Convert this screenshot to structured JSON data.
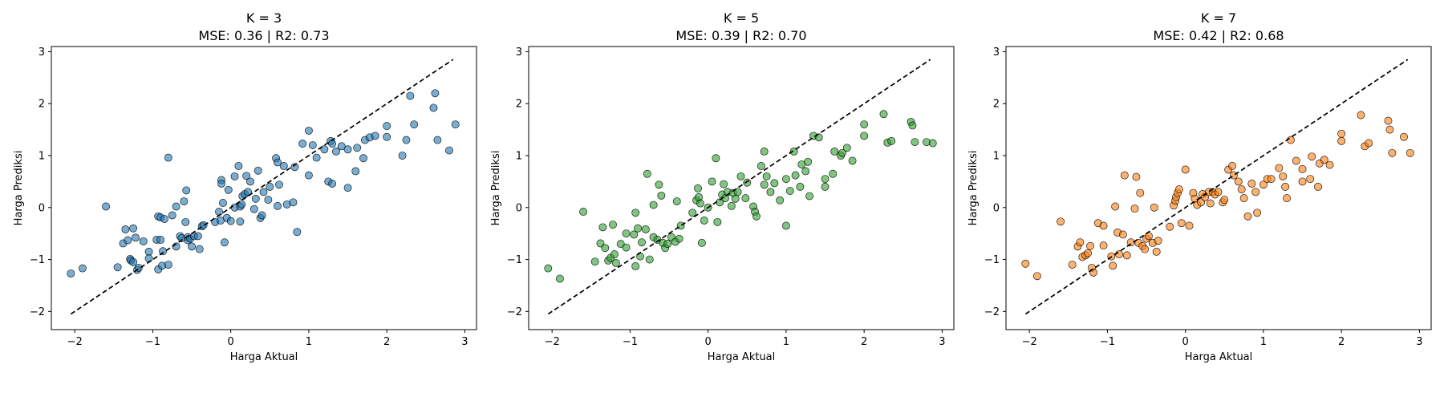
{
  "chart_data": [
    {
      "type": "scatter",
      "title": "K = 3",
      "subtitle": "MSE: 0.36 | R2: 0.73",
      "xlabel": "Harga Aktual",
      "ylabel": "Harga Prediksi",
      "xlim": [
        -2.3,
        3.15
      ],
      "ylim": [
        -2.35,
        3.1
      ],
      "xticks": [
        -2,
        -1,
        0,
        1,
        2,
        3
      ],
      "yticks": [
        -2,
        -1,
        0,
        1,
        2,
        3
      ],
      "xtick_labels": [
        "−2",
        "−1",
        "0",
        "1",
        "2",
        "3"
      ],
      "ytick_labels": [
        "−2",
        "−1",
        "0",
        "1",
        "2",
        "3"
      ],
      "grid": false,
      "marker_color": "#1f77b4",
      "reference_line": {
        "x": [
          -2.05,
          2.85
        ],
        "y": [
          -2.05,
          2.85
        ],
        "color": "#000000",
        "style": "dashed"
      },
      "points": [
        [
          -2.05,
          -1.27
        ],
        [
          -1.9,
          -1.17
        ],
        [
          -1.6,
          0.02
        ],
        [
          -1.45,
          -1.15
        ],
        [
          -1.38,
          -0.69
        ],
        [
          -1.35,
          -0.42
        ],
        [
          -1.32,
          -0.63
        ],
        [
          -1.29,
          -0.99
        ],
        [
          -1.28,
          -1.02
        ],
        [
          -1.25,
          -0.4
        ],
        [
          -1.25,
          -1.05
        ],
        [
          -1.22,
          -0.58
        ],
        [
          -1.2,
          -1.2
        ],
        [
          -1.18,
          -1.16
        ],
        [
          -1.12,
          -0.65
        ],
        [
          -1.05,
          -0.85
        ],
        [
          -1.05,
          -0.98
        ],
        [
          -0.95,
          -0.62
        ],
        [
          -0.93,
          -1.19
        ],
        [
          -0.93,
          -0.17
        ],
        [
          -0.9,
          -0.62
        ],
        [
          -0.9,
          -0.19
        ],
        [
          -0.88,
          -1.12
        ],
        [
          -0.87,
          -0.84
        ],
        [
          -0.85,
          -0.22
        ],
        [
          -0.8,
          -1.1
        ],
        [
          -0.8,
          0.96
        ],
        [
          -0.75,
          -0.15
        ],
        [
          -0.7,
          -0.75
        ],
        [
          -0.7,
          0.02
        ],
        [
          -0.65,
          -0.55
        ],
        [
          -0.63,
          -0.59
        ],
        [
          -0.6,
          0.12
        ],
        [
          -0.58,
          -0.28
        ],
        [
          -0.57,
          0.33
        ],
        [
          -0.55,
          -0.57
        ],
        [
          -0.55,
          -0.63
        ],
        [
          -0.52,
          -0.6
        ],
        [
          -0.5,
          -0.75
        ],
        [
          -0.47,
          -0.55
        ],
        [
          -0.42,
          -0.55
        ],
        [
          -0.4,
          -0.8
        ],
        [
          -0.37,
          -0.36
        ],
        [
          -0.35,
          -0.34
        ],
        [
          -0.2,
          -0.28
        ],
        [
          -0.15,
          -0.08
        ],
        [
          -0.13,
          -0.25
        ],
        [
          -0.12,
          0.53
        ],
        [
          -0.12,
          0.46
        ],
        [
          -0.1,
          0.09
        ],
        [
          -0.08,
          -0.67
        ],
        [
          -0.05,
          -0.2
        ],
        [
          -0.03,
          0.34
        ],
        [
          0.0,
          -0.26
        ],
        [
          0.05,
          0.0
        ],
        [
          0.05,
          0.6
        ],
        [
          0.1,
          0.8
        ],
        [
          0.12,
          -0.27
        ],
        [
          0.12,
          0.02
        ],
        [
          0.14,
          0.06
        ],
        [
          0.15,
          0.22
        ],
        [
          0.18,
          0.26
        ],
        [
          0.2,
          0.61
        ],
        [
          0.22,
          0.3
        ],
        [
          0.25,
          0.5
        ],
        [
          0.3,
          -0.03
        ],
        [
          0.32,
          0.17
        ],
        [
          0.35,
          0.71
        ],
        [
          0.38,
          -0.2
        ],
        [
          0.4,
          -0.15
        ],
        [
          0.42,
          0.3
        ],
        [
          0.48,
          0.15
        ],
        [
          0.5,
          0.4
        ],
        [
          0.58,
          0.95
        ],
        [
          0.6,
          0.87
        ],
        [
          0.6,
          0.03
        ],
        [
          0.62,
          0.44
        ],
        [
          0.68,
          0.8
        ],
        [
          0.72,
          0.06
        ],
        [
          0.8,
          0.1
        ],
        [
          0.82,
          0.78
        ],
        [
          0.85,
          -0.47
        ],
        [
          0.92,
          1.23
        ],
        [
          1.0,
          1.48
        ],
        [
          1.0,
          0.62
        ],
        [
          1.05,
          1.2
        ],
        [
          1.1,
          0.96
        ],
        [
          1.2,
          1.12
        ],
        [
          1.25,
          0.5
        ],
        [
          1.28,
          1.28
        ],
        [
          1.3,
          0.46
        ],
        [
          1.3,
          1.23
        ],
        [
          1.35,
          1.08
        ],
        [
          1.42,
          1.18
        ],
        [
          1.5,
          0.38
        ],
        [
          1.5,
          1.12
        ],
        [
          1.6,
          0.7
        ],
        [
          1.62,
          1.15
        ],
        [
          1.7,
          0.95
        ],
        [
          1.72,
          1.3
        ],
        [
          1.78,
          1.35
        ],
        [
          1.85,
          1.38
        ],
        [
          2.0,
          1.57
        ],
        [
          2.0,
          1.36
        ],
        [
          2.2,
          1.0
        ],
        [
          2.25,
          1.3
        ],
        [
          2.3,
          2.15
        ],
        [
          2.35,
          1.6
        ],
        [
          2.6,
          1.92
        ],
        [
          2.62,
          2.2
        ],
        [
          2.65,
          1.3
        ],
        [
          2.8,
          1.1
        ],
        [
          2.88,
          1.6
        ]
      ]
    },
    {
      "type": "scatter",
      "title": "K = 5",
      "subtitle": "MSE: 0.39 | R2: 0.70",
      "xlabel": "Harga Aktual",
      "ylabel": "Harga Prediksi",
      "xlim": [
        -2.3,
        3.15
      ],
      "ylim": [
        -2.35,
        3.1
      ],
      "xticks": [
        -2,
        -1,
        0,
        1,
        2,
        3
      ],
      "yticks": [
        -2,
        -1,
        0,
        1,
        2,
        3
      ],
      "xtick_labels": [
        "−2",
        "−1",
        "0",
        "1",
        "2",
        "3"
      ],
      "ytick_labels": [
        "−2",
        "−1",
        "0",
        "1",
        "2",
        "3"
      ],
      "grid": false,
      "marker_color": "#2ca02c",
      "reference_line": {
        "x": [
          -2.05,
          2.85
        ],
        "y": [
          -2.05,
          2.85
        ],
        "color": "#000000",
        "style": "dashed"
      },
      "points": [
        [
          -2.05,
          -1.17
        ],
        [
          -1.9,
          -1.37
        ],
        [
          -1.6,
          -0.08
        ],
        [
          -1.45,
          -1.04
        ],
        [
          -1.38,
          -0.69
        ],
        [
          -1.35,
          -0.38
        ],
        [
          -1.32,
          -0.78
        ],
        [
          -1.28,
          -1.02
        ],
        [
          -1.25,
          -0.97
        ],
        [
          -1.22,
          -0.33
        ],
        [
          -1.2,
          -0.9
        ],
        [
          -1.18,
          -1.07
        ],
        [
          -1.12,
          -0.7
        ],
        [
          -1.05,
          -0.77
        ],
        [
          -1.05,
          -0.5
        ],
        [
          -0.95,
          -0.52
        ],
        [
          -0.93,
          -1.13
        ],
        [
          -0.93,
          -0.1
        ],
        [
          -0.9,
          -0.4
        ],
        [
          -0.87,
          -0.94
        ],
        [
          -0.85,
          -0.67
        ],
        [
          -0.8,
          -0.42
        ],
        [
          -0.78,
          0.65
        ],
        [
          -0.75,
          -1.0
        ],
        [
          -0.7,
          -0.57
        ],
        [
          -0.7,
          0.05
        ],
        [
          -0.65,
          -0.62
        ],
        [
          -0.63,
          0.44
        ],
        [
          -0.6,
          0.23
        ],
        [
          -0.58,
          -0.68
        ],
        [
          -0.55,
          -0.78
        ],
        [
          -0.52,
          -0.7
        ],
        [
          -0.47,
          -0.57
        ],
        [
          -0.42,
          -0.66
        ],
        [
          -0.4,
          0.12
        ],
        [
          -0.37,
          -0.6
        ],
        [
          -0.35,
          -0.35
        ],
        [
          -0.2,
          -0.1
        ],
        [
          -0.15,
          0.14
        ],
        [
          -0.13,
          0.37
        ],
        [
          -0.12,
          0.2
        ],
        [
          -0.1,
          0.08
        ],
        [
          -0.08,
          -0.68
        ],
        [
          -0.05,
          -0.25
        ],
        [
          0.0,
          0.0
        ],
        [
          0.05,
          0.5
        ],
        [
          0.1,
          0.95
        ],
        [
          0.12,
          -0.28
        ],
        [
          0.15,
          0.1
        ],
        [
          0.18,
          0.25
        ],
        [
          0.2,
          0.45
        ],
        [
          0.22,
          0.18
        ],
        [
          0.25,
          0.3
        ],
        [
          0.3,
          0.03
        ],
        [
          0.32,
          0.28
        ],
        [
          0.35,
          0.17
        ],
        [
          0.38,
          0.3
        ],
        [
          0.42,
          0.6
        ],
        [
          0.48,
          0.18
        ],
        [
          0.5,
          0.48
        ],
        [
          0.58,
          0.02
        ],
        [
          0.6,
          -0.08
        ],
        [
          0.62,
          -0.17
        ],
        [
          0.68,
          0.8
        ],
        [
          0.72,
          1.08
        ],
        [
          0.72,
          0.44
        ],
        [
          0.75,
          0.6
        ],
        [
          0.8,
          0.3
        ],
        [
          0.85,
          0.47
        ],
        [
          0.92,
          0.14
        ],
        [
          1.0,
          0.55
        ],
        [
          1.0,
          -0.35
        ],
        [
          1.05,
          0.32
        ],
        [
          1.1,
          1.08
        ],
        [
          1.12,
          0.62
        ],
        [
          1.18,
          0.4
        ],
        [
          1.2,
          0.83
        ],
        [
          1.25,
          0.7
        ],
        [
          1.28,
          0.88
        ],
        [
          1.3,
          0.22
        ],
        [
          1.35,
          1.38
        ],
        [
          1.42,
          1.35
        ],
        [
          1.5,
          0.55
        ],
        [
          1.5,
          0.4
        ],
        [
          1.6,
          0.65
        ],
        [
          1.62,
          1.08
        ],
        [
          1.7,
          1.0
        ],
        [
          1.72,
          1.05
        ],
        [
          1.78,
          1.15
        ],
        [
          1.85,
          0.9
        ],
        [
          2.0,
          1.6
        ],
        [
          2.0,
          1.38
        ],
        [
          2.25,
          1.8
        ],
        [
          2.3,
          1.25
        ],
        [
          2.35,
          1.28
        ],
        [
          2.6,
          1.65
        ],
        [
          2.62,
          1.58
        ],
        [
          2.65,
          1.26
        ],
        [
          2.8,
          1.26
        ],
        [
          2.88,
          1.24
        ]
      ]
    },
    {
      "type": "scatter",
      "title": "K = 7",
      "subtitle": "MSE: 0.42 | R2: 0.68",
      "xlabel": "Harga Aktual",
      "ylabel": "Harga Prediksi",
      "xlim": [
        -2.3,
        3.15
      ],
      "ylim": [
        -2.35,
        3.1
      ],
      "xticks": [
        -2,
        -1,
        0,
        1,
        2,
        3
      ],
      "yticks": [
        -2,
        -1,
        0,
        1,
        2,
        3
      ],
      "xtick_labels": [
        "−2",
        "−1",
        "0",
        "1",
        "2",
        "3"
      ],
      "ytick_labels": [
        "−2",
        "−1",
        "0",
        "1",
        "2",
        "3"
      ],
      "grid": false,
      "marker_color": "#ff7f0e",
      "reference_line": {
        "x": [
          -2.05,
          2.85
        ],
        "y": [
          -2.05,
          2.85
        ],
        "color": "#000000",
        "style": "dashed"
      },
      "points": [
        [
          -2.05,
          -1.08
        ],
        [
          -1.9,
          -1.32
        ],
        [
          -1.6,
          -0.27
        ],
        [
          -1.45,
          -1.1
        ],
        [
          -1.38,
          -0.75
        ],
        [
          -1.35,
          -0.67
        ],
        [
          -1.32,
          -0.95
        ],
        [
          -1.28,
          -0.92
        ],
        [
          -1.25,
          -0.88
        ],
        [
          -1.22,
          -0.74
        ],
        [
          -1.2,
          -1.16
        ],
        [
          -1.18,
          -1.25
        ],
        [
          -1.12,
          -0.3
        ],
        [
          -1.05,
          -0.73
        ],
        [
          -1.05,
          -0.35
        ],
        [
          -0.95,
          -0.94
        ],
        [
          -0.93,
          -1.12
        ],
        [
          -0.9,
          0.02
        ],
        [
          -0.87,
          -0.48
        ],
        [
          -0.85,
          -0.9
        ],
        [
          -0.8,
          -0.52
        ],
        [
          -0.78,
          0.62
        ],
        [
          -0.75,
          -0.92
        ],
        [
          -0.7,
          -0.67
        ],
        [
          -0.65,
          -0.02
        ],
        [
          -0.63,
          0.59
        ],
        [
          -0.6,
          -0.68
        ],
        [
          -0.58,
          0.28
        ],
        [
          -0.55,
          -0.74
        ],
        [
          -0.52,
          -0.8
        ],
        [
          -0.5,
          -0.6
        ],
        [
          -0.47,
          -0.55
        ],
        [
          -0.42,
          -0.68
        ],
        [
          -0.4,
          0.0
        ],
        [
          -0.37,
          -0.85
        ],
        [
          -0.35,
          -0.64
        ],
        [
          -0.2,
          -0.37
        ],
        [
          -0.15,
          0.04
        ],
        [
          -0.13,
          0.13
        ],
        [
          -0.12,
          0.2
        ],
        [
          -0.1,
          0.28
        ],
        [
          -0.08,
          0.35
        ],
        [
          -0.05,
          -0.3
        ],
        [
          0.0,
          0.73
        ],
        [
          0.05,
          -0.35
        ],
        [
          0.1,
          0.28
        ],
        [
          0.12,
          0.17
        ],
        [
          0.15,
          0.05
        ],
        [
          0.2,
          0.1
        ],
        [
          0.22,
          0.26
        ],
        [
          0.25,
          0.2
        ],
        [
          0.3,
          0.3
        ],
        [
          0.32,
          0.08
        ],
        [
          0.35,
          0.3
        ],
        [
          0.38,
          0.25
        ],
        [
          0.42,
          0.3
        ],
        [
          0.48,
          0.1
        ],
        [
          0.5,
          0.15
        ],
        [
          0.55,
          0.73
        ],
        [
          0.6,
          0.8
        ],
        [
          0.62,
          0.62
        ],
        [
          0.68,
          0.5
        ],
        [
          0.72,
          0.35
        ],
        [
          0.75,
          0.18
        ],
        [
          0.8,
          -0.17
        ],
        [
          0.85,
          0.46
        ],
        [
          0.9,
          0.3
        ],
        [
          0.92,
          -0.1
        ],
        [
          1.0,
          0.44
        ],
        [
          1.05,
          0.55
        ],
        [
          1.1,
          0.55
        ],
        [
          1.2,
          0.76
        ],
        [
          1.25,
          0.6
        ],
        [
          1.28,
          0.4
        ],
        [
          1.3,
          0.18
        ],
        [
          1.35,
          1.3
        ],
        [
          1.42,
          0.9
        ],
        [
          1.5,
          0.74
        ],
        [
          1.5,
          0.5
        ],
        [
          1.6,
          0.55
        ],
        [
          1.62,
          0.98
        ],
        [
          1.7,
          0.4
        ],
        [
          1.72,
          0.85
        ],
        [
          1.78,
          0.92
        ],
        [
          1.85,
          0.82
        ],
        [
          2.0,
          1.42
        ],
        [
          2.0,
          1.28
        ],
        [
          2.25,
          1.78
        ],
        [
          2.3,
          1.18
        ],
        [
          2.35,
          1.24
        ],
        [
          2.6,
          1.67
        ],
        [
          2.62,
          1.5
        ],
        [
          2.65,
          1.05
        ],
        [
          2.8,
          1.36
        ],
        [
          2.88,
          1.05
        ]
      ]
    }
  ]
}
